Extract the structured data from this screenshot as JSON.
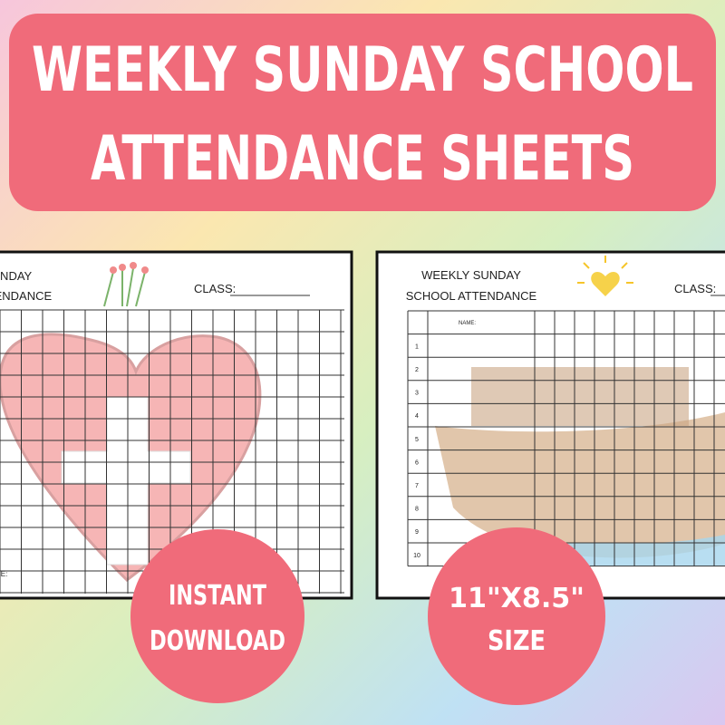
{
  "header": {
    "title_lines": [
      "WEEKLY SUNDAY SCHOOL",
      "ATTENDANCE SHEETS"
    ]
  },
  "sheets": [
    {
      "title_lines": [
        "SUNDAY",
        "ATTENDANCE"
      ],
      "class_label": "CLASS:",
      "footer_label": "CE:"
    },
    {
      "title_lines": [
        "WEEKLY SUNDAY",
        "SCHOOL ATTENDANCE"
      ],
      "class_label": "CLASS:",
      "name_label": "NAME:",
      "row_numbers": [
        1,
        2,
        3,
        4,
        5,
        6,
        7,
        8,
        9,
        10
      ]
    }
  ],
  "badges": [
    {
      "lines": [
        "INSTANT",
        "DOWNLOAD"
      ]
    },
    {
      "lines": [
        "11\"X8.5\"",
        "SIZE"
      ]
    }
  ]
}
